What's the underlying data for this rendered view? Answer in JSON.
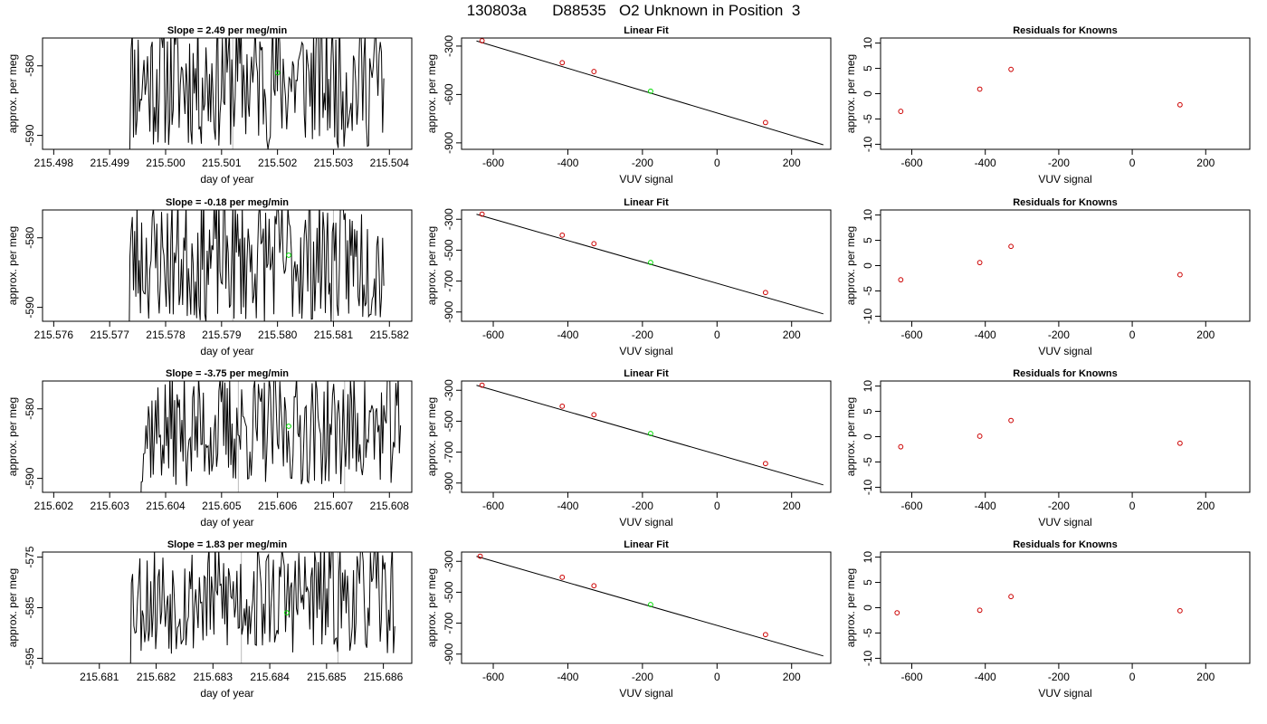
{
  "title": "130803a      D88535   O2 Unknown in Position  3",
  "colors": {
    "axis": "#000000",
    "series": "#000000",
    "known_point": "#cc0000",
    "unknown_point": "#00dd00",
    "marker_line": "#bbbbbb"
  },
  "chart_data": [
    {
      "type": "line",
      "panel": "timeseries",
      "row": 1,
      "title": "Slope =  2.49  per meg/min",
      "xlabel": "day of year",
      "ylabel": "approx. per meg",
      "xlim": [
        215.4978,
        215.5044
      ],
      "ylim": [
        -592,
        -576
      ],
      "xticks": [
        215.498,
        215.499,
        215.5,
        215.501,
        215.502,
        215.503,
        215.504
      ],
      "xtick_labels": [
        "215.498",
        "215.499",
        "215.500",
        "215.501",
        "215.502",
        "215.503",
        "215.504"
      ],
      "yticks": [
        -580,
        -590
      ],
      "ytick_labels": [
        "-580",
        "-590"
      ],
      "x_start": 215.4993,
      "x_end": 215.5039,
      "baseline": -582,
      "amplitude": 8,
      "seed": 11,
      "reference_lines": [
        215.5012
      ],
      "highlight_point": {
        "x": 215.502,
        "y": -581
      }
    },
    {
      "type": "line",
      "panel": "linear_fit",
      "row": 1,
      "title": "Linear Fit",
      "xlabel": "VUV signal",
      "ylabel": "approx. per meg",
      "xlim": [
        -685,
        305
      ],
      "ylim": [
        -940,
        -250
      ],
      "xticks": [
        -600,
        -400,
        -200,
        0,
        200
      ],
      "xtick_labels": [
        "-600",
        "-400",
        "-200",
        "0",
        "200"
      ],
      "yticks": [
        -300,
        -600,
        -900
      ],
      "ytick_labels": [
        "-300",
        "-600",
        "-900"
      ],
      "fit_line": {
        "x": [
          -645,
          285
        ],
        "y": [
          -268,
          -912
        ]
      },
      "known_points": [
        {
          "x": -630,
          "y": -267
        },
        {
          "x": -415,
          "y": -403
        },
        {
          "x": -330,
          "y": -458
        },
        {
          "x": 130,
          "y": -774
        }
      ],
      "unknown_point": {
        "x": -178,
        "y": -580
      }
    },
    {
      "type": "scatter",
      "panel": "residuals",
      "row": 1,
      "title": "Residuals for Knowns",
      "xlabel": "VUV signal",
      "ylabel": "approx. per meg",
      "xlim": [
        -685,
        320
      ],
      "ylim": [
        -11,
        11
      ],
      "xticks": [
        -600,
        -400,
        -200,
        0,
        200
      ],
      "xtick_labels": [
        "-600",
        "-400",
        "-200",
        "0",
        "200"
      ],
      "yticks": [
        10,
        5,
        0,
        -5,
        -10
      ],
      "ytick_labels": [
        "10",
        "5",
        "0",
        "-5",
        "-10"
      ],
      "points": [
        {
          "x": -630,
          "y": -3.5
        },
        {
          "x": -415,
          "y": 0.9
        },
        {
          "x": -330,
          "y": 4.8
        },
        {
          "x": 130,
          "y": -2.2
        }
      ]
    },
    {
      "type": "line",
      "panel": "timeseries",
      "row": 2,
      "title": "Slope =  -0.18  per meg/min",
      "xlabel": "day of year",
      "ylabel": "approx. per meg",
      "xlim": [
        215.5758,
        215.5824
      ],
      "ylim": [
        -592,
        -576
      ],
      "xticks": [
        215.576,
        215.577,
        215.578,
        215.579,
        215.58,
        215.581,
        215.582
      ],
      "xtick_labels": [
        "215.576",
        "215.577",
        "215.578",
        "215.579",
        "215.580",
        "215.581",
        "215.582"
      ],
      "yticks": [
        -580,
        -590
      ],
      "ytick_labels": [
        "-580",
        "-590"
      ],
      "x_start": 215.5773,
      "x_end": 215.5819,
      "baseline": -583,
      "amplitude": 7.5,
      "seed": 23,
      "reference_lines": [
        215.5792,
        215.581
      ],
      "highlight_point": {
        "x": 215.5802,
        "y": -582.5
      }
    },
    {
      "type": "line",
      "panel": "linear_fit",
      "row": 2,
      "title": "Linear Fit",
      "xlabel": "VUV signal",
      "ylabel": "approx. per meg",
      "xlim": [
        -685,
        305
      ],
      "ylim": [
        -960,
        -240
      ],
      "xticks": [
        -600,
        -400,
        -200,
        0,
        200
      ],
      "xtick_labels": [
        "-600",
        "-400",
        "-200",
        "0",
        "200"
      ],
      "yticks": [
        -300,
        -500,
        -700,
        -900
      ],
      "ytick_labels": [
        "-300",
        "-500",
        "-700",
        "-900"
      ],
      "fit_line": {
        "x": [
          -645,
          285
        ],
        "y": [
          -268,
          -912
        ]
      },
      "known_points": [
        {
          "x": -630,
          "y": -267
        },
        {
          "x": -415,
          "y": -403
        },
        {
          "x": -330,
          "y": -458
        },
        {
          "x": 130,
          "y": -774
        }
      ],
      "unknown_point": {
        "x": -178,
        "y": -580
      }
    },
    {
      "type": "scatter",
      "panel": "residuals",
      "row": 2,
      "title": "Residuals for Knowns",
      "xlabel": "VUV signal",
      "ylabel": "approx. per meg",
      "xlim": [
        -685,
        320
      ],
      "ylim": [
        -11,
        11
      ],
      "xticks": [
        -600,
        -400,
        -200,
        0,
        200
      ],
      "xtick_labels": [
        "-600",
        "-400",
        "-200",
        "0",
        "200"
      ],
      "yticks": [
        10,
        5,
        0,
        -5,
        -10
      ],
      "ytick_labels": [
        "10",
        "5",
        "0",
        "-5",
        "-10"
      ],
      "points": [
        {
          "x": -630,
          "y": -2.8
        },
        {
          "x": -415,
          "y": 0.6
        },
        {
          "x": -330,
          "y": 3.8
        },
        {
          "x": 130,
          "y": -1.8
        }
      ]
    },
    {
      "type": "line",
      "panel": "timeseries",
      "row": 3,
      "title": "Slope =  -3.75  per meg/min",
      "xlabel": "day of year",
      "ylabel": "approx. per meg",
      "xlim": [
        215.6018,
        215.6084
      ],
      "ylim": [
        -592,
        -576
      ],
      "xticks": [
        215.602,
        215.603,
        215.604,
        215.605,
        215.606,
        215.607,
        215.608
      ],
      "xtick_labels": [
        "215.602",
        "215.603",
        "215.604",
        "215.605",
        "215.606",
        "215.607",
        "215.608"
      ],
      "yticks": [
        -580,
        -590
      ],
      "ytick_labels": [
        "-580",
        "-590"
      ],
      "x_start": 215.6035,
      "x_end": 215.6082,
      "baseline": -583,
      "amplitude": 6.5,
      "seed": 37,
      "reference_lines": [
        215.6053,
        215.6072
      ],
      "highlight_point": {
        "x": 215.6062,
        "y": -582.5
      }
    },
    {
      "type": "line",
      "panel": "linear_fit",
      "row": 3,
      "title": "Linear Fit",
      "xlabel": "VUV signal",
      "ylabel": "approx. per meg",
      "xlim": [
        -685,
        305
      ],
      "ylim": [
        -960,
        -240
      ],
      "xticks": [
        -600,
        -400,
        -200,
        0,
        200
      ],
      "xtick_labels": [
        "-600",
        "-400",
        "-200",
        "0",
        "200"
      ],
      "yticks": [
        -300,
        -500,
        -700,
        -900
      ],
      "ytick_labels": [
        "-300",
        "-500",
        "-700",
        "-900"
      ],
      "fit_line": {
        "x": [
          -645,
          285
        ],
        "y": [
          -268,
          -912
        ]
      },
      "known_points": [
        {
          "x": -630,
          "y": -267
        },
        {
          "x": -415,
          "y": -403
        },
        {
          "x": -330,
          "y": -458
        },
        {
          "x": 130,
          "y": -774
        }
      ],
      "unknown_point": {
        "x": -178,
        "y": -580
      }
    },
    {
      "type": "scatter",
      "panel": "residuals",
      "row": 3,
      "title": "Residuals for Knowns",
      "xlabel": "VUV signal",
      "ylabel": "approx. per meg",
      "xlim": [
        -685,
        320
      ],
      "ylim": [
        -11,
        11
      ],
      "xticks": [
        -600,
        -400,
        -200,
        0,
        200
      ],
      "xtick_labels": [
        "-600",
        "-400",
        "-200",
        "0",
        "200"
      ],
      "yticks": [
        10,
        5,
        0,
        -5,
        -10
      ],
      "ytick_labels": [
        "10",
        "5",
        "0",
        "-5",
        "-10"
      ],
      "points": [
        {
          "x": -630,
          "y": -2.0
        },
        {
          "x": -415,
          "y": 0.1
        },
        {
          "x": -330,
          "y": 3.2
        },
        {
          "x": 130,
          "y": -1.3
        }
      ]
    },
    {
      "type": "line",
      "panel": "timeseries",
      "row": 4,
      "title": "Slope =  1.83  per meg/min",
      "xlabel": "day of year",
      "ylabel": "approx. per meg",
      "xlim": [
        215.68,
        215.6865
      ],
      "ylim": [
        -596,
        -574
      ],
      "xticks": [
        215.681,
        215.682,
        215.683,
        215.684,
        215.685,
        215.686
      ],
      "xtick_labels": [
        "215.681",
        "215.682",
        "215.683",
        "215.684",
        "215.685",
        "215.686"
      ],
      "yticks": [
        -575,
        -585,
        -595
      ],
      "ytick_labels": [
        "-575",
        "-585",
        "-595"
      ],
      "x_start": 215.6815,
      "x_end": 215.6862,
      "baseline": -583,
      "amplitude": 9,
      "seed": 53,
      "reference_lines": [
        215.6835,
        215.6852
      ],
      "highlight_point": {
        "x": 215.6843,
        "y": -586
      }
    },
    {
      "type": "line",
      "panel": "linear_fit",
      "row": 4,
      "title": "Linear Fit",
      "xlabel": "VUV signal",
      "ylabel": "approx. per meg",
      "xlim": [
        -685,
        305
      ],
      "ylim": [
        -960,
        -240
      ],
      "xticks": [
        -600,
        -400,
        -200,
        0,
        200
      ],
      "xtick_labels": [
        "-600",
        "-400",
        "-200",
        "0",
        "200"
      ],
      "yticks": [
        -300,
        -500,
        -700,
        -900
      ],
      "ytick_labels": [
        "-300",
        "-500",
        "-700",
        "-900"
      ],
      "fit_line": {
        "x": [
          -645,
          285
        ],
        "y": [
          -268,
          -912
        ]
      },
      "known_points": [
        {
          "x": -635,
          "y": -267
        },
        {
          "x": -415,
          "y": -403
        },
        {
          "x": -330,
          "y": -458
        },
        {
          "x": 130,
          "y": -774
        }
      ],
      "unknown_point": {
        "x": -178,
        "y": -580
      }
    },
    {
      "type": "scatter",
      "panel": "residuals",
      "row": 4,
      "title": "Residuals for Knowns",
      "xlabel": "VUV signal",
      "ylabel": "approx. per meg",
      "xlim": [
        -685,
        320
      ],
      "ylim": [
        -11,
        11
      ],
      "xticks": [
        -600,
        -400,
        -200,
        0,
        200
      ],
      "xtick_labels": [
        "-600",
        "-400",
        "-200",
        "0",
        "200"
      ],
      "yticks": [
        10,
        5,
        0,
        -5,
        -10
      ],
      "ytick_labels": [
        "10",
        "5",
        "0",
        "-5",
        "-10"
      ],
      "points": [
        {
          "x": -640,
          "y": -1.0
        },
        {
          "x": -415,
          "y": -0.5
        },
        {
          "x": -330,
          "y": 2.2
        },
        {
          "x": 130,
          "y": -0.6
        }
      ]
    }
  ]
}
